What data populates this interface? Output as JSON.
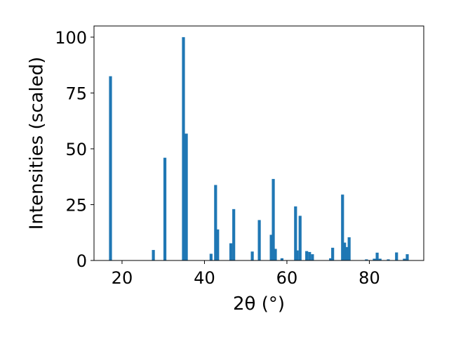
{
  "chart_data": {
    "type": "bar",
    "xlabel": "2θ (°)",
    "ylabel": "Intensities (scaled)",
    "xlim": [
      13.2,
      93.2
    ],
    "ylim": [
      0,
      105
    ],
    "xticks": [
      20,
      40,
      60,
      80
    ],
    "yticks": [
      0,
      25,
      50,
      75,
      100
    ],
    "xtick_labels": [
      "20",
      "40",
      "60",
      "80"
    ],
    "ytick_labels": [
      "0",
      "25",
      "50",
      "75",
      "100"
    ],
    "grid": false,
    "bar_color": "#1f77b4",
    "bars": [
      {
        "x": 17.2,
        "y": 82.5
      },
      {
        "x": 27.6,
        "y": 4.7
      },
      {
        "x": 30.4,
        "y": 46.0
      },
      {
        "x": 34.9,
        "y": 100.0
      },
      {
        "x": 35.6,
        "y": 56.8
      },
      {
        "x": 41.6,
        "y": 3.0
      },
      {
        "x": 42.7,
        "y": 33.8
      },
      {
        "x": 43.2,
        "y": 13.9
      },
      {
        "x": 46.4,
        "y": 7.7
      },
      {
        "x": 47.1,
        "y": 23.0
      },
      {
        "x": 51.6,
        "y": 4.0
      },
      {
        "x": 53.3,
        "y": 18.1
      },
      {
        "x": 56.2,
        "y": 11.5
      },
      {
        "x": 56.7,
        "y": 36.5
      },
      {
        "x": 57.2,
        "y": 5.2
      },
      {
        "x": 58.8,
        "y": 1.0
      },
      {
        "x": 62.1,
        "y": 24.2
      },
      {
        "x": 62.5,
        "y": 4.5
      },
      {
        "x": 63.2,
        "y": 20.0
      },
      {
        "x": 64.8,
        "y": 4.2
      },
      {
        "x": 65.5,
        "y": 3.8
      },
      {
        "x": 66.2,
        "y": 2.8
      },
      {
        "x": 70.6,
        "y": 1.0
      },
      {
        "x": 71.1,
        "y": 5.7
      },
      {
        "x": 73.5,
        "y": 29.5
      },
      {
        "x": 74.0,
        "y": 8.0
      },
      {
        "x": 74.5,
        "y": 6.0
      },
      {
        "x": 75.1,
        "y": 10.4
      },
      {
        "x": 79.3,
        "y": 0.5
      },
      {
        "x": 81.2,
        "y": 0.8
      },
      {
        "x": 81.9,
        "y": 3.5
      },
      {
        "x": 82.6,
        "y": 0.8
      },
      {
        "x": 84.6,
        "y": 0.5
      },
      {
        "x": 86.6,
        "y": 3.6
      },
      {
        "x": 88.5,
        "y": 0.8
      },
      {
        "x": 89.2,
        "y": 2.8
      }
    ]
  }
}
